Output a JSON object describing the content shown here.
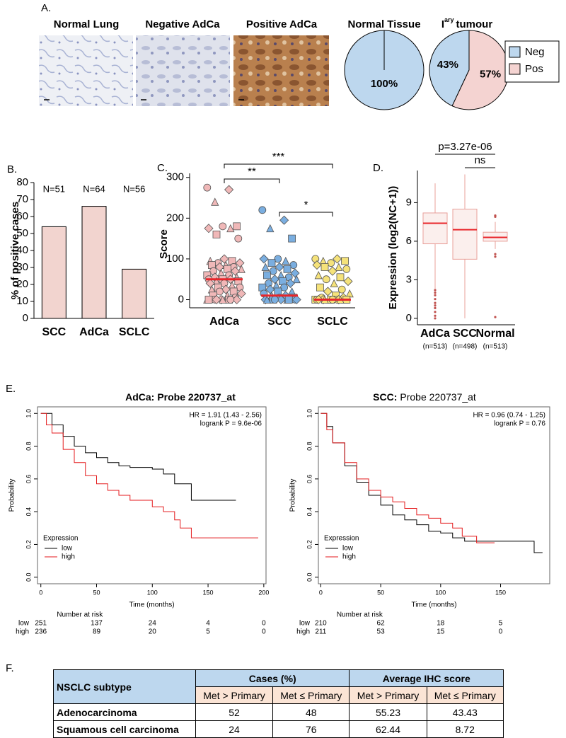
{
  "panel_labels": [
    "A.",
    "B.",
    "C.",
    "D.",
    "E.",
    "F."
  ],
  "micrographs": [
    "Normal Lung",
    "Negative AdCa",
    "Positive AdCa"
  ],
  "chart_data": [
    {
      "type": "pie",
      "title": "Normal Tissue",
      "categories": [
        "Neg"
      ],
      "values": [
        100
      ],
      "value_labels": [
        "100%"
      ],
      "colors": [
        "#bdd7ee"
      ]
    },
    {
      "type": "pie",
      "title": [
        "I",
        "ary",
        "tumour"
      ],
      "categories": [
        "Neg",
        "Pos"
      ],
      "values": [
        43,
        57
      ],
      "value_labels": [
        "43%",
        "57%"
      ],
      "colors": [
        "#bdd7ee",
        "#f4d3d1"
      ],
      "legend": "right"
    },
    {
      "type": "bar",
      "ylabel": "% of positive cases",
      "categories": [
        "SCC",
        "AdCa",
        "SCLC"
      ],
      "values": [
        54,
        66,
        29
      ],
      "annotations": [
        "N=51",
        "N=64",
        "N=56"
      ],
      "color": "#f2d4cf",
      "ylim": [
        0,
        80
      ],
      "yticks": [
        0,
        10,
        20,
        30,
        40,
        50,
        60,
        70,
        80
      ]
    },
    {
      "type": "strip",
      "ylabel": "Score",
      "categories": [
        "AdCa",
        "SCC",
        "SCLC"
      ],
      "points": [
        [
          275,
          270,
          240,
          180,
          180,
          175,
          175,
          160,
          150,
          100,
          95,
          95,
          90,
          90,
          85,
          85,
          80,
          80,
          75,
          75,
          70,
          70,
          65,
          60,
          60,
          55,
          55,
          50,
          50,
          50,
          45,
          45,
          40,
          40,
          35,
          30,
          30,
          25,
          25,
          20,
          20,
          15,
          10,
          10,
          5,
          0,
          0,
          0,
          0,
          0,
          0,
          0,
          0,
          0
        ],
        [
          220,
          195,
          175,
          150,
          100,
          100,
          95,
          90,
          85,
          80,
          80,
          75,
          70,
          65,
          60,
          60,
          55,
          50,
          50,
          45,
          40,
          40,
          35,
          30,
          30,
          25,
          20,
          20,
          15,
          10,
          10,
          5,
          5,
          0,
          0,
          0,
          0,
          0,
          0,
          0,
          0,
          0
        ],
        [
          100,
          100,
          95,
          95,
          90,
          85,
          80,
          80,
          75,
          70,
          60,
          55,
          50,
          45,
          40,
          30,
          25,
          20,
          15,
          10,
          5,
          5,
          0,
          0,
          0,
          0,
          0,
          0,
          0,
          0,
          0,
          0,
          0,
          0,
          0
        ]
      ],
      "medians": [
        50,
        10,
        0
      ],
      "colors": [
        "#f0b8b8",
        "#7aaee0",
        "#f5e27a"
      ],
      "median_color": "#e8262b",
      "ylim": [
        -20,
        310
      ],
      "yticks": [
        0,
        100,
        200,
        300
      ],
      "brackets": [
        {
          "text": "***",
          "between": [
            "AdCa",
            "SCLC"
          ]
        },
        {
          "text": "**",
          "between": [
            "AdCa",
            "SCC"
          ]
        },
        {
          "text": "*",
          "between": [
            "SCC",
            "SCLC"
          ]
        }
      ]
    },
    {
      "type": "box",
      "ylabel": "Expression (log2(NC+1))",
      "categories": [
        "AdCa",
        "SCC",
        "Normal"
      ],
      "n_labels": [
        "(n=513)",
        "(n=498)",
        "(n=513)"
      ],
      "boxes": [
        {
          "whislo": 2.3,
          "q1": 5.8,
          "med": 7.4,
          "q3": 8.2,
          "whishi": 10.5
        },
        {
          "whislo": 0,
          "q1": 4.6,
          "med": 6.9,
          "q3": 8.5,
          "whishi": 11.2
        },
        {
          "whislo": 5.4,
          "q1": 6.0,
          "med": 6.3,
          "q3": 6.7,
          "whishi": 7.5
        }
      ],
      "outliers": [
        [
          2.2,
          2.0,
          1.8,
          1.5,
          1.2,
          1.0,
          0.8,
          0.5,
          0.2,
          0
        ],
        [],
        [
          8.0,
          7.9,
          5.0,
          4.8,
          0.1
        ]
      ],
      "color": "#e8a09a",
      "median_color": "#e8262b",
      "ylim": [
        -0.5,
        11.5
      ],
      "yticks": [
        0,
        3,
        6,
        9
      ],
      "brackets": [
        {
          "text": "p=3.27e-06",
          "between": [
            "AdCa",
            "Normal"
          ]
        },
        {
          "text": "ns",
          "between": [
            "SCC",
            "Normal"
          ]
        }
      ]
    },
    {
      "type": "survival",
      "title": [
        "AdCa:",
        "Probe 220737_at"
      ],
      "annotations": [
        "HR = 1.91 (1.43 - 2.56)",
        "logrank P = 9.6e-06"
      ],
      "xlabel": "Time (months)",
      "ylabel": "Probability",
      "xlim": [
        -3,
        202
      ],
      "xticks": [
        0,
        50,
        100,
        150,
        200
      ],
      "ylim": [
        -0.04,
        1.04
      ],
      "yticks": [
        {
          "value": 0,
          "label": "0.0"
        },
        {
          "value": 0.2,
          "label": "0.2"
        },
        {
          "value": 0.4,
          "label": "0.4"
        },
        {
          "value": 0.6,
          "label": "0.6"
        },
        {
          "value": 0.8,
          "label": "0.8"
        },
        {
          "value": 1,
          "label": "1.0"
        }
      ],
      "legend_title": "Expression",
      "series": [
        {
          "name": "low",
          "color": "#000000",
          "x": [
            0,
            10,
            20,
            30,
            40,
            50,
            60,
            70,
            80,
            100,
            110,
            120,
            135,
            175
          ],
          "values": [
            1,
            0.93,
            0.86,
            0.8,
            0.76,
            0.73,
            0.7,
            0.68,
            0.67,
            0.66,
            0.63,
            0.57,
            0.47,
            0.47
          ]
        },
        {
          "name": "high",
          "color": "#e41a1c",
          "x": [
            0,
            5,
            10,
            20,
            30,
            40,
            50,
            60,
            70,
            80,
            100,
            110,
            120,
            125,
            135,
            195
          ],
          "values": [
            1,
            0.93,
            0.88,
            0.78,
            0.7,
            0.62,
            0.57,
            0.53,
            0.5,
            0.47,
            0.43,
            0.4,
            0.35,
            0.3,
            0.24,
            0.24
          ]
        }
      ],
      "risk_title": "Number at risk",
      "at_risk": [
        [
          251,
          137,
          24,
          4,
          0
        ],
        [
          236,
          89,
          20,
          5,
          0
        ]
      ]
    },
    {
      "type": "survival",
      "title": [
        "SCC:",
        "Probe 220737_at"
      ],
      "annotations": [
        "HR = 0.96 (0.74 - 1.25)",
        "logrank P = 0.76"
      ],
      "xlabel": "Time (months)",
      "ylabel": "Probability",
      "xlim": [
        -2,
        191
      ],
      "xticks": [
        0,
        50,
        100,
        150
      ],
      "ylim": [
        -0.04,
        1.04
      ],
      "yticks": [
        {
          "value": 0,
          "label": "0.0"
        },
        {
          "value": 0.2,
          "label": "0.2"
        },
        {
          "value": 0.4,
          "label": "0.4"
        },
        {
          "value": 0.6,
          "label": "0.6"
        },
        {
          "value": 0.8,
          "label": "0.8"
        },
        {
          "value": 1,
          "label": "1.0"
        }
      ],
      "legend_title": "Expression",
      "series": [
        {
          "name": "low",
          "color": "#000000",
          "x": [
            0,
            5,
            10,
            20,
            30,
            40,
            50,
            60,
            70,
            80,
            90,
            100,
            110,
            120,
            175,
            178,
            185
          ],
          "values": [
            1,
            0.92,
            0.82,
            0.68,
            0.58,
            0.5,
            0.44,
            0.38,
            0.35,
            0.32,
            0.28,
            0.27,
            0.24,
            0.22,
            0.22,
            0.15,
            0.15
          ]
        },
        {
          "name": "high",
          "color": "#e41a1c",
          "x": [
            0,
            5,
            10,
            20,
            30,
            40,
            50,
            60,
            70,
            80,
            90,
            100,
            110,
            118,
            130,
            145
          ],
          "values": [
            1,
            0.9,
            0.82,
            0.7,
            0.6,
            0.53,
            0.49,
            0.46,
            0.42,
            0.38,
            0.36,
            0.33,
            0.3,
            0.25,
            0.21,
            0.21
          ]
        }
      ],
      "risk_title": "Number at risk",
      "at_risk": [
        [
          210,
          62,
          18,
          5
        ],
        [
          211,
          53,
          15,
          0
        ]
      ]
    }
  ],
  "table": {
    "header": [
      "NSCLC subtype",
      "Cases (%)",
      "Average IHC score"
    ],
    "subheader": [
      "Met > Primary",
      "Met ≤ Primary",
      "Met > Primary",
      "Met ≤ Primary"
    ],
    "rows": [
      [
        "Adenocarcinoma",
        52,
        48,
        55.23,
        43.43
      ],
      [
        "Squamous cell carcinoma",
        24,
        76,
        62.44,
        8.72
      ]
    ]
  }
}
